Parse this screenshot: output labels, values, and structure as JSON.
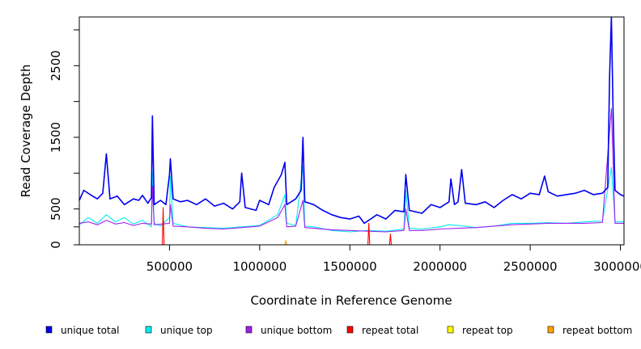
{
  "chart_data": {
    "type": "line",
    "xlabel": "Coordinate in Reference Genome",
    "ylabel": "Read Coverage Depth",
    "xlim": [
      0,
      3020000
    ],
    "ylim": [
      0,
      3180
    ],
    "x_ticks": [
      {
        "value": 500000,
        "label": "500000"
      },
      {
        "value": 1000000,
        "label": "1000000"
      },
      {
        "value": 1500000,
        "label": "1500000"
      },
      {
        "value": 2000000,
        "label": "2000000"
      },
      {
        "value": 2500000,
        "label": "2500000"
      },
      {
        "value": 3000000,
        "label": "3000000"
      }
    ],
    "y_ticks": [
      {
        "value": 0,
        "label": "0"
      },
      {
        "value": 250,
        "label": ""
      },
      {
        "value": 500,
        "label": "500"
      },
      {
        "value": 1000,
        "label": ""
      },
      {
        "value": 1500,
        "label": "1500"
      },
      {
        "value": 2000,
        "label": ""
      },
      {
        "value": 2500,
        "label": "2500"
      },
      {
        "value": 3000,
        "label": ""
      }
    ],
    "legend_position": "bottom",
    "series": [
      {
        "name": "unique total",
        "color": "#0000ee",
        "points": [
          [
            0,
            620
          ],
          [
            25000,
            760
          ],
          [
            60000,
            700
          ],
          [
            100000,
            640
          ],
          [
            130000,
            720
          ],
          [
            150000,
            1270
          ],
          [
            170000,
            640
          ],
          [
            210000,
            680
          ],
          [
            250000,
            560
          ],
          [
            300000,
            640
          ],
          [
            330000,
            620
          ],
          [
            350000,
            690
          ],
          [
            380000,
            580
          ],
          [
            400000,
            660
          ],
          [
            405000,
            1800
          ],
          [
            415000,
            560
          ],
          [
            450000,
            620
          ],
          [
            480000,
            560
          ],
          [
            500000,
            980
          ],
          [
            505000,
            1200
          ],
          [
            520000,
            640
          ],
          [
            560000,
            600
          ],
          [
            600000,
            620
          ],
          [
            650000,
            560
          ],
          [
            700000,
            640
          ],
          [
            750000,
            540
          ],
          [
            800000,
            580
          ],
          [
            850000,
            500
          ],
          [
            890000,
            600
          ],
          [
            900000,
            1000
          ],
          [
            920000,
            520
          ],
          [
            980000,
            480
          ],
          [
            1000000,
            620
          ],
          [
            1050000,
            560
          ],
          [
            1080000,
            800
          ],
          [
            1120000,
            980
          ],
          [
            1140000,
            1150
          ],
          [
            1150000,
            560
          ],
          [
            1200000,
            640
          ],
          [
            1230000,
            760
          ],
          [
            1240000,
            1500
          ],
          [
            1250000,
            600
          ],
          [
            1300000,
            560
          ],
          [
            1350000,
            480
          ],
          [
            1400000,
            420
          ],
          [
            1450000,
            380
          ],
          [
            1500000,
            360
          ],
          [
            1550000,
            400
          ],
          [
            1580000,
            300
          ],
          [
            1650000,
            420
          ],
          [
            1700000,
            360
          ],
          [
            1750000,
            480
          ],
          [
            1800000,
            460
          ],
          [
            1810000,
            980
          ],
          [
            1830000,
            480
          ],
          [
            1900000,
            440
          ],
          [
            1950000,
            560
          ],
          [
            2000000,
            520
          ],
          [
            2050000,
            600
          ],
          [
            2060000,
            920
          ],
          [
            2080000,
            560
          ],
          [
            2100000,
            600
          ],
          [
            2120000,
            1050
          ],
          [
            2140000,
            580
          ],
          [
            2200000,
            560
          ],
          [
            2250000,
            600
          ],
          [
            2300000,
            520
          ],
          [
            2350000,
            620
          ],
          [
            2400000,
            700
          ],
          [
            2450000,
            640
          ],
          [
            2500000,
            720
          ],
          [
            2550000,
            700
          ],
          [
            2580000,
            960
          ],
          [
            2600000,
            740
          ],
          [
            2650000,
            680
          ],
          [
            2700000,
            700
          ],
          [
            2750000,
            720
          ],
          [
            2800000,
            760
          ],
          [
            2850000,
            700
          ],
          [
            2900000,
            720
          ],
          [
            2930000,
            800
          ],
          [
            2940000,
            2360
          ],
          [
            2950000,
            3180
          ],
          [
            2960000,
            1800
          ],
          [
            2970000,
            760
          ],
          [
            3000000,
            700
          ],
          [
            3020000,
            680
          ]
        ]
      },
      {
        "name": "unique top",
        "color": "#00eeee",
        "points": [
          [
            0,
            280
          ],
          [
            50000,
            380
          ],
          [
            100000,
            300
          ],
          [
            150000,
            420
          ],
          [
            200000,
            320
          ],
          [
            250000,
            380
          ],
          [
            300000,
            290
          ],
          [
            350000,
            340
          ],
          [
            400000,
            250
          ],
          [
            405000,
            1020
          ],
          [
            415000,
            300
          ],
          [
            450000,
            260
          ],
          [
            500000,
            380
          ],
          [
            505000,
            960
          ],
          [
            520000,
            300
          ],
          [
            600000,
            250
          ],
          [
            700000,
            240
          ],
          [
            800000,
            230
          ],
          [
            900000,
            250
          ],
          [
            1000000,
            270
          ],
          [
            1100000,
            420
          ],
          [
            1140000,
            700
          ],
          [
            1150000,
            300
          ],
          [
            1200000,
            270
          ],
          [
            1240000,
            1100
          ],
          [
            1250000,
            260
          ],
          [
            1300000,
            250
          ],
          [
            1400000,
            200
          ],
          [
            1500000,
            180
          ],
          [
            1600000,
            200
          ],
          [
            1700000,
            190
          ],
          [
            1800000,
            220
          ],
          [
            1810000,
            760
          ],
          [
            1830000,
            230
          ],
          [
            1900000,
            220
          ],
          [
            2000000,
            250
          ],
          [
            2050000,
            280
          ],
          [
            2100000,
            270
          ],
          [
            2200000,
            240
          ],
          [
            2300000,
            260
          ],
          [
            2400000,
            300
          ],
          [
            2500000,
            300
          ],
          [
            2600000,
            310
          ],
          [
            2700000,
            300
          ],
          [
            2800000,
            320
          ],
          [
            2900000,
            330
          ],
          [
            2950000,
            1080
          ],
          [
            2970000,
            320
          ],
          [
            3020000,
            320
          ]
        ]
      },
      {
        "name": "unique bottom",
        "color": "#a020f0",
        "points": [
          [
            0,
            300
          ],
          [
            50000,
            320
          ],
          [
            100000,
            280
          ],
          [
            150000,
            340
          ],
          [
            200000,
            290
          ],
          [
            250000,
            310
          ],
          [
            300000,
            270
          ],
          [
            350000,
            300
          ],
          [
            400000,
            290
          ],
          [
            405000,
            820
          ],
          [
            415000,
            280
          ],
          [
            500000,
            300
          ],
          [
            505000,
            560
          ],
          [
            520000,
            260
          ],
          [
            600000,
            250
          ],
          [
            700000,
            230
          ],
          [
            800000,
            220
          ],
          [
            900000,
            240
          ],
          [
            1000000,
            260
          ],
          [
            1100000,
            380
          ],
          [
            1140000,
            560
          ],
          [
            1150000,
            250
          ],
          [
            1200000,
            260
          ],
          [
            1240000,
            620
          ],
          [
            1250000,
            240
          ],
          [
            1300000,
            230
          ],
          [
            1400000,
            210
          ],
          [
            1500000,
            200
          ],
          [
            1600000,
            190
          ],
          [
            1700000,
            180
          ],
          [
            1800000,
            200
          ],
          [
            1810000,
            500
          ],
          [
            1830000,
            200
          ],
          [
            1900000,
            200
          ],
          [
            2000000,
            220
          ],
          [
            2100000,
            230
          ],
          [
            2200000,
            240
          ],
          [
            2300000,
            260
          ],
          [
            2400000,
            280
          ],
          [
            2500000,
            290
          ],
          [
            2600000,
            300
          ],
          [
            2700000,
            300
          ],
          [
            2800000,
            300
          ],
          [
            2900000,
            310
          ],
          [
            2950000,
            1900
          ],
          [
            2970000,
            300
          ],
          [
            3020000,
            300
          ]
        ]
      },
      {
        "name": "repeat total",
        "color": "#ff0000",
        "points": [
          [
            0,
            0
          ],
          [
            460000,
            0
          ],
          [
            465000,
            520
          ],
          [
            470000,
            0
          ],
          [
            1600000,
            0
          ],
          [
            1605000,
            300
          ],
          [
            1610000,
            0
          ],
          [
            1720000,
            0
          ],
          [
            1725000,
            150
          ],
          [
            1730000,
            0
          ],
          [
            3020000,
            0
          ]
        ]
      },
      {
        "name": "repeat top",
        "color": "#ffff00",
        "points": [
          [
            0,
            0
          ],
          [
            3020000,
            0
          ]
        ]
      },
      {
        "name": "repeat bottom",
        "color": "#ffa500",
        "points": [
          [
            0,
            0
          ],
          [
            1140000,
            0
          ],
          [
            1145000,
            60
          ],
          [
            1150000,
            0
          ],
          [
            3020000,
            0
          ]
        ]
      }
    ]
  }
}
